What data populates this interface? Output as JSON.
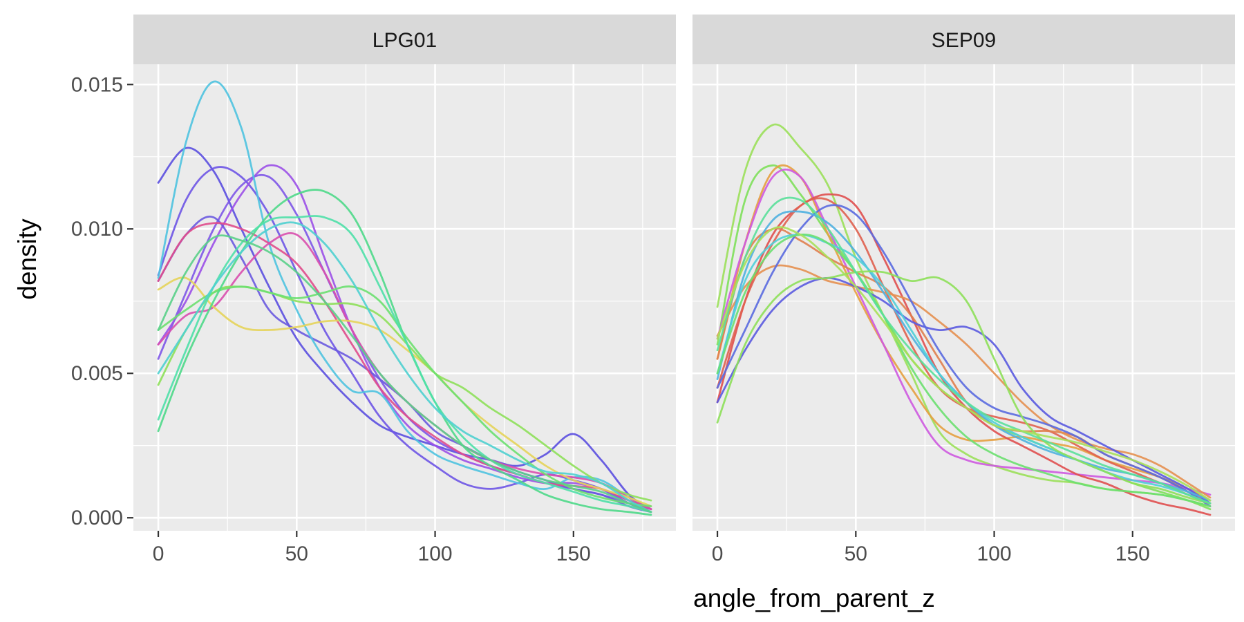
{
  "chart_data": {
    "type": "line",
    "kind": "faceted density curves",
    "xlabel": "angle_from_parent_z",
    "ylabel": "density",
    "xlim": [
      -9,
      187
    ],
    "ylim": [
      -0.00045,
      0.0157
    ],
    "x_ticks": [
      0,
      50,
      100,
      150
    ],
    "y_ticks": [
      0,
      0.005,
      0.01,
      0.015
    ],
    "x_tick_labels": [
      "0",
      "50",
      "100",
      "150"
    ],
    "y_tick_labels": [
      "0.000",
      "0.005",
      "0.010",
      "0.015"
    ],
    "grid": true,
    "legend": "none",
    "x": [
      0,
      10,
      20,
      30,
      40,
      50,
      60,
      70,
      80,
      90,
      100,
      110,
      120,
      130,
      140,
      150,
      160,
      170,
      178
    ],
    "facets": [
      {
        "label": "LPG01",
        "series": [
          {
            "color": "#5B4FE0",
            "values": [
              0.0116,
              0.0128,
              0.012,
              0.01,
              0.008,
              0.0062,
              0.005,
              0.004,
              0.0032,
              0.0028,
              0.0025,
              0.0022,
              0.002,
              0.0018,
              0.0022,
              0.0029,
              0.002,
              0.0008,
              0.0003
            ]
          },
          {
            "color": "#6E55E6",
            "values": [
              0.0084,
              0.011,
              0.0121,
              0.0118,
              0.0105,
              0.0085,
              0.0065,
              0.005,
              0.0035,
              0.0025,
              0.0018,
              0.0012,
              0.001,
              0.0012,
              0.0015,
              0.0013,
              0.001,
              0.0005,
              0.0002
            ]
          },
          {
            "color": "#7E57E8",
            "values": [
              0.0055,
              0.0078,
              0.01,
              0.0115,
              0.0118,
              0.0105,
              0.0085,
              0.0065,
              0.0048,
              0.0035,
              0.0027,
              0.0022,
              0.0018,
              0.0015,
              0.0012,
              0.001,
              0.0008,
              0.0005,
              0.0003
            ]
          },
          {
            "color": "#9B50E8",
            "values": [
              0.006,
              0.0075,
              0.0095,
              0.0112,
              0.0122,
              0.0115,
              0.009,
              0.0065,
              0.0045,
              0.0032,
              0.0025,
              0.002,
              0.0017,
              0.0014,
              0.0012,
              0.0012,
              0.001,
              0.0006,
              0.0003
            ]
          },
          {
            "color": "#6A5AE0",
            "values": [
              0.0082,
              0.0098,
              0.0104,
              0.009,
              0.0072,
              0.0065,
              0.006,
              0.0055,
              0.0048,
              0.004,
              0.003,
              0.0025,
              0.002,
              0.0016,
              0.0013,
              0.001,
              0.0008,
              0.0004,
              0.0002
            ]
          },
          {
            "color": "#4FC3E0",
            "values": [
              0.0083,
              0.013,
              0.0151,
              0.0135,
              0.0095,
              0.0072,
              0.0055,
              0.0044,
              0.0043,
              0.003,
              0.0022,
              0.0018,
              0.0015,
              0.0012,
              0.001,
              0.0014,
              0.0013,
              0.0007,
              0.0003
            ]
          },
          {
            "color": "#E04C8C",
            "values": [
              0.0082,
              0.0098,
              0.0102,
              0.01,
              0.0095,
              0.0088,
              0.0075,
              0.006,
              0.0045,
              0.0035,
              0.0028,
              0.0022,
              0.0018,
              0.0015,
              0.0012,
              0.0011,
              0.001,
              0.0006,
              0.0003
            ]
          },
          {
            "color": "#D94FAE",
            "values": [
              0.006,
              0.007,
              0.0073,
              0.0085,
              0.0095,
              0.0098,
              0.0085,
              0.0065,
              0.005,
              0.004,
              0.0032,
              0.0025,
              0.002,
              0.0017,
              0.0015,
              0.0014,
              0.0012,
              0.0007,
              0.0003
            ]
          },
          {
            "color": "#E6D45A",
            "values": [
              0.0079,
              0.0083,
              0.0073,
              0.0066,
              0.0065,
              0.0066,
              0.0068,
              0.0068,
              0.0065,
              0.0058,
              0.005,
              0.004,
              0.0032,
              0.0025,
              0.0018,
              0.0013,
              0.001,
              0.0007,
              0.0004
            ]
          },
          {
            "color": "#8EE05A",
            "values": [
              0.0046,
              0.0065,
              0.0078,
              0.008,
              0.0078,
              0.0075,
              0.0074,
              0.0074,
              0.007,
              0.006,
              0.005,
              0.0045,
              0.0038,
              0.0032,
              0.0025,
              0.0018,
              0.0012,
              0.0008,
              0.0006
            ]
          },
          {
            "color": "#6BE070",
            "values": [
              0.0065,
              0.0072,
              0.0078,
              0.008,
              0.0078,
              0.0076,
              0.0078,
              0.008,
              0.0075,
              0.0062,
              0.005,
              0.004,
              0.003,
              0.0022,
              0.0015,
              0.001,
              0.0007,
              0.0005,
              0.0004
            ]
          },
          {
            "color": "#4FD98A",
            "values": [
              0.003,
              0.0055,
              0.0075,
              0.0092,
              0.0105,
              0.0112,
              0.0113,
              0.0105,
              0.0085,
              0.006,
              0.004,
              0.0025,
              0.0018,
              0.0013,
              0.0008,
              0.0005,
              0.0003,
              0.0002,
              0.0001
            ]
          },
          {
            "color": "#4FE0A8",
            "values": [
              0.0034,
              0.0058,
              0.008,
              0.0095,
              0.0103,
              0.0104,
              0.0104,
              0.0098,
              0.008,
              0.006,
              0.004,
              0.0028,
              0.002,
              0.0015,
              0.0012,
              0.0009,
              0.0006,
              0.0004,
              0.0002
            ]
          },
          {
            "color": "#4FD0D0",
            "values": [
              0.005,
              0.0065,
              0.008,
              0.0092,
              0.01,
              0.0102,
              0.0095,
              0.0082,
              0.0065,
              0.005,
              0.0038,
              0.003,
              0.0025,
              0.002,
              0.0016,
              0.0015,
              0.0012,
              0.0006,
              0.0002
            ]
          },
          {
            "color": "#5AD08A",
            "values": [
              0.0065,
              0.0085,
              0.0097,
              0.0096,
              0.0092,
              0.0085,
              0.0075,
              0.0063,
              0.005,
              0.004,
              0.0032,
              0.0025,
              0.002,
              0.0016,
              0.0013,
              0.0011,
              0.0009,
              0.0005,
              0.0002
            ]
          }
        ]
      },
      {
        "label": "SEP09",
        "series": [
          {
            "color": "#9BE05A",
            "values": [
              0.0073,
              0.012,
              0.0136,
              0.0128,
              0.0115,
              0.009,
              0.007,
              0.005,
              0.003,
              0.0022,
              0.0018,
              0.0015,
              0.0013,
              0.0012,
              0.001,
              0.0009,
              0.0008,
              0.0006,
              0.0004
            ]
          },
          {
            "color": "#7EE05A",
            "values": [
              0.006,
              0.011,
              0.0122,
              0.0112,
              0.0098,
              0.0085,
              0.007,
              0.0055,
              0.0045,
              0.0038,
              0.0032,
              0.0028,
              0.0024,
              0.002,
              0.0016,
              0.0012,
              0.0009,
              0.0006,
              0.0003
            ]
          },
          {
            "color": "#E6A040",
            "values": [
              0.0055,
              0.0095,
              0.012,
              0.0118,
              0.0098,
              0.0078,
              0.006,
              0.0045,
              0.0032,
              0.0027,
              0.0027,
              0.0028,
              0.0026,
              0.0024,
              0.002,
              0.0017,
              0.0014,
              0.001,
              0.0006
            ]
          },
          {
            "color": "#CE5AE0",
            "values": [
              0.0062,
              0.0095,
              0.0118,
              0.0118,
              0.01,
              0.008,
              0.006,
              0.004,
              0.0025,
              0.002,
              0.0018,
              0.0017,
              0.0016,
              0.0015,
              0.0014,
              0.0013,
              0.0012,
              0.001,
              0.0008
            ]
          },
          {
            "color": "#E04F4F",
            "values": [
              0.004,
              0.0075,
              0.0098,
              0.0108,
              0.0112,
              0.0108,
              0.009,
              0.007,
              0.005,
              0.0038,
              0.003,
              0.0025,
              0.002,
              0.0015,
              0.0012,
              0.0008,
              0.0005,
              0.0003,
              0.0001
            ]
          },
          {
            "color": "#E0604F",
            "values": [
              0.0045,
              0.0075,
              0.0095,
              0.0108,
              0.011,
              0.01,
              0.008,
              0.006,
              0.0045,
              0.0038,
              0.0035,
              0.0033,
              0.003,
              0.0025,
              0.002,
              0.0016,
              0.0012,
              0.0008,
              0.0005
            ]
          },
          {
            "color": "#E0804F",
            "values": [
              0.0055,
              0.009,
              0.01,
              0.0096,
              0.009,
              0.0085,
              0.008,
              0.007,
              0.0055,
              0.004,
              0.0032,
              0.003,
              0.003,
              0.0028,
              0.0022,
              0.0018,
              0.0014,
              0.0009,
              0.0005
            ]
          },
          {
            "color": "#E69050",
            "values": [
              0.0063,
              0.008,
              0.0087,
              0.0086,
              0.0082,
              0.008,
              0.0078,
              0.0075,
              0.0068,
              0.006,
              0.005,
              0.004,
              0.0032,
              0.0027,
              0.0024,
              0.0022,
              0.0018,
              0.0012,
              0.0007
            ]
          },
          {
            "color": "#5A5AE0",
            "values": [
              0.004,
              0.0058,
              0.0072,
              0.008,
              0.0083,
              0.008,
              0.0075,
              0.0068,
              0.0065,
              0.0066,
              0.006,
              0.0045,
              0.0035,
              0.003,
              0.0025,
              0.002,
              0.0015,
              0.001,
              0.0005
            ]
          },
          {
            "color": "#5A6AE0",
            "values": [
              0.0045,
              0.0065,
              0.0085,
              0.01,
              0.0108,
              0.0105,
              0.0092,
              0.0075,
              0.0058,
              0.0045,
              0.0038,
              0.0035,
              0.0032,
              0.0028,
              0.0022,
              0.0018,
              0.0014,
              0.0009,
              0.0004
            ]
          },
          {
            "color": "#4FB0E0",
            "values": [
              0.0048,
              0.0085,
              0.0103,
              0.0106,
              0.0102,
              0.0092,
              0.0078,
              0.0063,
              0.005,
              0.004,
              0.0032,
              0.0027,
              0.0023,
              0.002,
              0.0017,
              0.0015,
              0.0012,
              0.0009,
              0.0006
            ]
          },
          {
            "color": "#4FD0D8",
            "values": [
              0.005,
              0.0082,
              0.0095,
              0.0098,
              0.0095,
              0.009,
              0.008,
              0.0065,
              0.005,
              0.004,
              0.0033,
              0.0028,
              0.0024,
              0.002,
              0.0016,
              0.0013,
              0.0011,
              0.0008,
              0.0005
            ]
          },
          {
            "color": "#8EE05A",
            "values": [
              0.0033,
              0.006,
              0.0075,
              0.0082,
              0.0083,
              0.0085,
              0.0085,
              0.0082,
              0.0083,
              0.0075,
              0.0055,
              0.0035,
              0.0025,
              0.002,
              0.0016,
              0.0012,
              0.001,
              0.0007,
              0.0005
            ]
          },
          {
            "color": "#6BE070",
            "values": [
              0.005,
              0.0078,
              0.0093,
              0.0098,
              0.0095,
              0.0085,
              0.007,
              0.0052,
              0.0038,
              0.0028,
              0.0022,
              0.0018,
              0.0015,
              0.0012,
              0.001,
              0.0009,
              0.0008,
              0.0006,
              0.0004
            ]
          },
          {
            "color": "#5AE09A",
            "values": [
              0.0058,
              0.009,
              0.0108,
              0.011,
              0.01,
              0.0085,
              0.007,
              0.0058,
              0.0048,
              0.004,
              0.0034,
              0.003,
              0.0026,
              0.0022,
              0.0018,
              0.0015,
              0.0012,
              0.0008,
              0.0005
            ]
          },
          {
            "color": "#A8E05A",
            "values": [
              0.0062,
              0.0088,
              0.01,
              0.0098,
              0.009,
              0.008,
              0.0068,
              0.0055,
              0.0045,
              0.0038,
              0.0032,
              0.003,
              0.0028,
              0.0026,
              0.0023,
              0.002,
              0.0016,
              0.0011,
              0.0006
            ]
          }
        ]
      }
    ]
  }
}
